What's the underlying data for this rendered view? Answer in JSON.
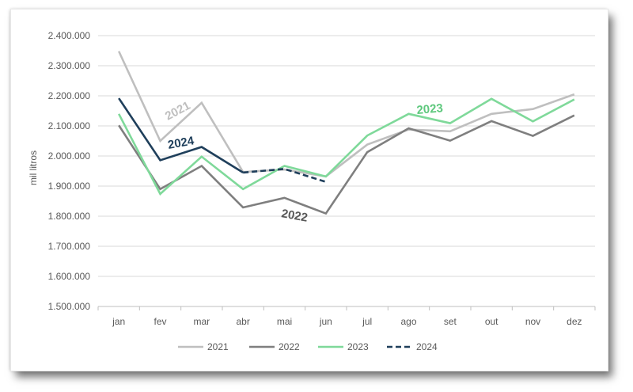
{
  "chart_data": {
    "type": "line",
    "title": "",
    "xlabel": "",
    "ylabel": "mil litros",
    "ylim": [
      1500000,
      2400000
    ],
    "yticks": [
      1500000,
      1600000,
      1700000,
      1800000,
      1900000,
      2000000,
      2100000,
      2200000,
      2300000,
      2400000
    ],
    "ytick_labels": [
      "1.500.000",
      "1.600.000",
      "1.700.000",
      "1.800.000",
      "1.900.000",
      "2.000.000",
      "2.100.000",
      "2.200.000",
      "2.300.000",
      "2.400.000"
    ],
    "categories": [
      "jan",
      "fev",
      "mar",
      "abr",
      "mai",
      "jun",
      "jul",
      "ago",
      "set",
      "out",
      "nov",
      "dez"
    ],
    "grid": true,
    "legend_position": "bottom",
    "series": [
      {
        "name": "2021",
        "color": "#bfbfbf",
        "dash": false,
        "values": [
          2348000,
          2050000,
          2177000,
          1947000,
          1955000,
          1932000,
          2038000,
          2088000,
          2082000,
          2140000,
          2156000,
          2205000
        ]
      },
      {
        "name": "2022",
        "color": "#7f7f7f",
        "dash": false,
        "values": [
          2102000,
          1890000,
          1967000,
          1829000,
          1861000,
          1809000,
          2013000,
          2092000,
          2051000,
          2116000,
          2067000,
          2135000
        ]
      },
      {
        "name": "2023",
        "color": "#7fd99a",
        "dash": false,
        "values": [
          2140000,
          1874000,
          1998000,
          1890000,
          1967000,
          1932000,
          2068000,
          2140000,
          2109000,
          2190000,
          2115000,
          2188000
        ]
      },
      {
        "name": "2024",
        "color": "#1f3f5b",
        "dash_from_index": 3,
        "values": [
          2192000,
          1986000,
          2030000,
          1945000,
          1957000,
          1914000,
          null,
          null,
          null,
          null,
          null,
          null
        ]
      }
    ],
    "annotations": [
      {
        "text": "2021",
        "series": "2021",
        "color": "#bfbfbf"
      },
      {
        "text": "2024",
        "series": "2024",
        "color": "#1f3f5b"
      },
      {
        "text": "2022",
        "series": "2022",
        "color": "#595959"
      },
      {
        "text": "2023",
        "series": "2023",
        "color": "#5ec87d"
      }
    ]
  }
}
